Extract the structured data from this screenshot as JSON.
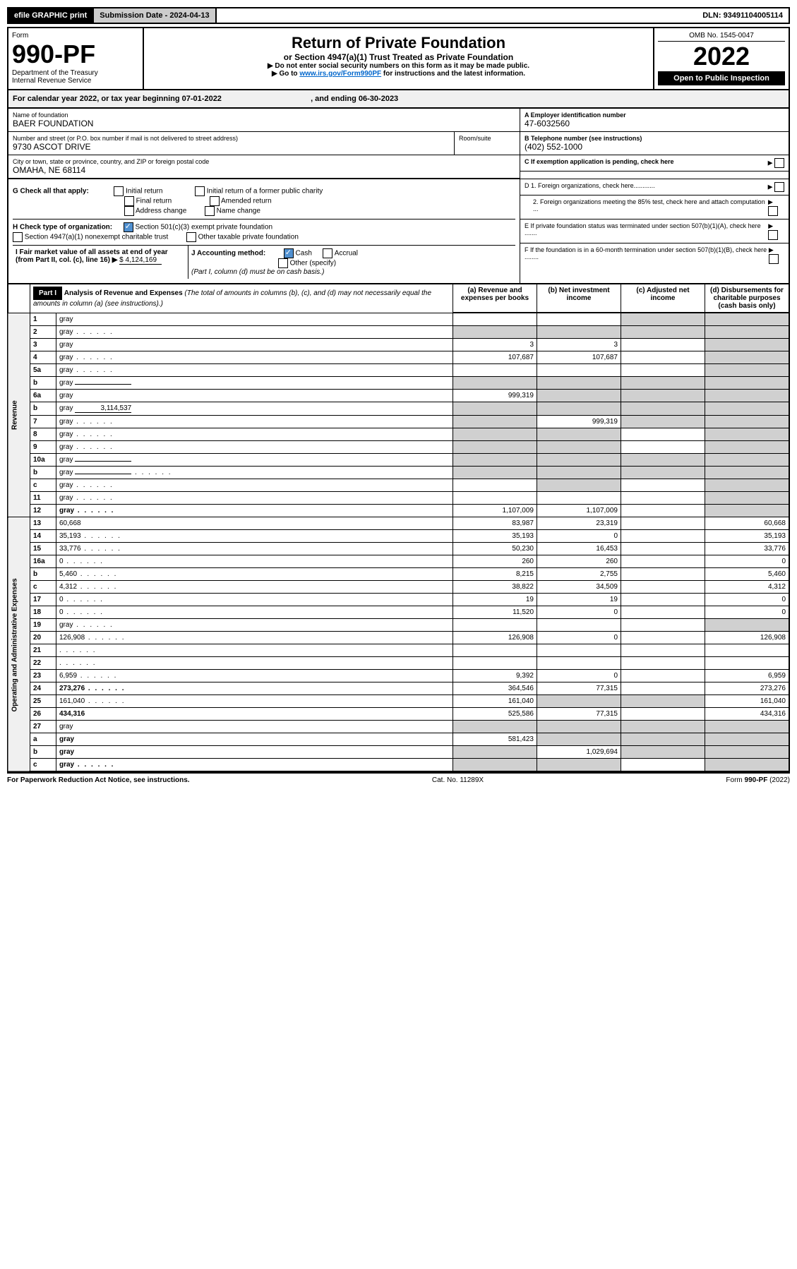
{
  "topbar": {
    "btn1": "efile GRAPHIC print",
    "btn2_label": "Submission Date - ",
    "btn2_value": "2024-04-13",
    "dln_label": "DLN: ",
    "dln_value": "93491104005114"
  },
  "header": {
    "form_label": "Form",
    "form_num": "990-PF",
    "dept": "Department of the Treasury",
    "irs": "Internal Revenue Service",
    "title": "Return of Private Foundation",
    "subtitle": "or Section 4947(a)(1) Trust Treated as Private Foundation",
    "note1": "▶ Do not enter social security numbers on this form as it may be made public.",
    "note2_pre": "▶ Go to ",
    "note2_link": "www.irs.gov/Form990PF",
    "note2_post": " for instructions and the latest information.",
    "omb": "OMB No. 1545-0047",
    "year": "2022",
    "open": "Open to Public Inspection"
  },
  "calyear": {
    "text_pre": "For calendar year 2022, or tax year beginning ",
    "begin": "07-01-2022",
    "text_mid": " , and ending ",
    "end": "06-30-2023"
  },
  "info": {
    "name_label": "Name of foundation",
    "name": "BAER FOUNDATION",
    "addr_label": "Number and street (or P.O. box number if mail is not delivered to street address)",
    "room_label": "Room/suite",
    "addr": "9730 ASCOT DRIVE",
    "city_label": "City or town, state or province, country, and ZIP or foreign postal code",
    "city": "OMAHA, NE  68114",
    "ein_label": "A Employer identification number",
    "ein": "47-6032560",
    "phone_label": "B Telephone number (see instructions)",
    "phone": "(402) 552-1000",
    "c_label": "C If exemption application is pending, check here",
    "d1_label": "D 1. Foreign organizations, check here............",
    "d2_label": "2. Foreign organizations meeting the 85% test, check here and attach computation ...",
    "e_label": "E  If private foundation status was terminated under section 507(b)(1)(A), check here .......",
    "f_label": "F  If the foundation is in a 60-month termination under section 507(b)(1)(B), check here ........"
  },
  "g": {
    "label": "G Check all that apply:",
    "opts": [
      "Initial return",
      "Final return",
      "Address change",
      "Initial return of a former public charity",
      "Amended return",
      "Name change"
    ]
  },
  "h": {
    "label": "H Check type of organization:",
    "opt1": "Section 501(c)(3) exempt private foundation",
    "opt2": "Section 4947(a)(1) nonexempt charitable trust",
    "opt3": "Other taxable private foundation"
  },
  "i": {
    "label_pre": "I Fair market value of all assets at end of year (from Part II, col. (c), line 16) ▶",
    "value": "$  4,124,169"
  },
  "j": {
    "label": "J Accounting method:",
    "cash": "Cash",
    "accrual": "Accrual",
    "other": "Other (specify)",
    "note": "(Part I, column (d) must be on cash basis.)"
  },
  "part1": {
    "label": "Part I",
    "title": "Analysis of Revenue and Expenses",
    "note": "(The total of amounts in columns (b), (c), and (d) may not necessarily equal the amounts in column (a) (see instructions).)",
    "col_a": "(a)  Revenue and expenses per books",
    "col_b": "(b)  Net investment income",
    "col_c": "(c)  Adjusted net income",
    "col_d": "(d)  Disbursements for charitable purposes (cash basis only)"
  },
  "sections": {
    "revenue": "Revenue",
    "expenses": "Operating and Administrative Expenses"
  },
  "lines": [
    {
      "n": "1",
      "d": "gray",
      "a": "",
      "b": "",
      "c": "gray"
    },
    {
      "n": "2",
      "d": "gray",
      "a": "gray",
      "b": "gray",
      "c": "gray",
      "dots": true
    },
    {
      "n": "3",
      "d": "gray",
      "a": "3",
      "b": "3",
      "c": ""
    },
    {
      "n": "4",
      "d": "gray",
      "a": "107,687",
      "b": "107,687",
      "c": "",
      "dots": true
    },
    {
      "n": "5a",
      "d": "gray",
      "a": "",
      "b": "",
      "c": "",
      "dots": true
    },
    {
      "n": "b",
      "d": "gray",
      "a": "gray",
      "b": "gray",
      "c": "gray",
      "inline": true
    },
    {
      "n": "6a",
      "d": "gray",
      "a": "999,319",
      "b": "gray",
      "c": "gray"
    },
    {
      "n": "b",
      "d": "gray",
      "inline_val": "3,114,537",
      "a": "gray",
      "b": "gray",
      "c": "gray"
    },
    {
      "n": "7",
      "d": "gray",
      "a": "gray",
      "b": "999,319",
      "c": "gray",
      "dots": true
    },
    {
      "n": "8",
      "d": "gray",
      "a": "gray",
      "b": "gray",
      "c": "",
      "dots": true
    },
    {
      "n": "9",
      "d": "gray",
      "a": "gray",
      "b": "gray",
      "c": "",
      "dots": true
    },
    {
      "n": "10a",
      "d": "gray",
      "a": "gray",
      "b": "gray",
      "c": "gray",
      "inline": true
    },
    {
      "n": "b",
      "d": "gray",
      "a": "gray",
      "b": "gray",
      "c": "gray",
      "inline": true,
      "dots": true
    },
    {
      "n": "c",
      "d": "gray",
      "a": "",
      "b": "gray",
      "c": "",
      "dots": true
    },
    {
      "n": "11",
      "d": "gray",
      "a": "",
      "b": "",
      "c": "",
      "dots": true
    },
    {
      "n": "12",
      "d": "gray",
      "a": "1,107,009",
      "b": "1,107,009",
      "c": "",
      "bold": true,
      "dots": true
    }
  ],
  "exp_lines": [
    {
      "n": "13",
      "d": "60,668",
      "a": "83,987",
      "b": "23,319",
      "c": ""
    },
    {
      "n": "14",
      "d": "35,193",
      "a": "35,193",
      "b": "0",
      "c": "",
      "dots": true
    },
    {
      "n": "15",
      "d": "33,776",
      "a": "50,230",
      "b": "16,453",
      "c": "",
      "dots": true
    },
    {
      "n": "16a",
      "d": "0",
      "a": "260",
      "b": "260",
      "c": "",
      "dots": true
    },
    {
      "n": "b",
      "d": "5,460",
      "a": "8,215",
      "b": "2,755",
      "c": "",
      "dots": true
    },
    {
      "n": "c",
      "d": "4,312",
      "a": "38,822",
      "b": "34,509",
      "c": "",
      "dots": true
    },
    {
      "n": "17",
      "d": "0",
      "a": "19",
      "b": "19",
      "c": "",
      "dots": true
    },
    {
      "n": "18",
      "d": "0",
      "a": "11,520",
      "b": "0",
      "c": "",
      "dots": true
    },
    {
      "n": "19",
      "d": "gray",
      "a": "",
      "b": "",
      "c": "",
      "dots": true
    },
    {
      "n": "20",
      "d": "126,908",
      "a": "126,908",
      "b": "0",
      "c": "",
      "dots": true
    },
    {
      "n": "21",
      "d": "",
      "a": "",
      "b": "",
      "c": "",
      "dots": true
    },
    {
      "n": "22",
      "d": "",
      "a": "",
      "b": "",
      "c": "",
      "dots": true
    },
    {
      "n": "23",
      "d": "6,959",
      "a": "9,392",
      "b": "0",
      "c": "",
      "dots": true
    },
    {
      "n": "24",
      "d": "273,276",
      "a": "364,546",
      "b": "77,315",
      "c": "",
      "bold": true,
      "dots": true
    },
    {
      "n": "25",
      "d": "161,040",
      "a": "161,040",
      "b": "gray",
      "c": "gray",
      "dots": true
    },
    {
      "n": "26",
      "d": "434,316",
      "a": "525,586",
      "b": "77,315",
      "c": "",
      "bold": true
    },
    {
      "n": "27",
      "d": "gray",
      "a": "gray",
      "b": "gray",
      "c": "gray"
    },
    {
      "n": "a",
      "d": "gray",
      "a": "581,423",
      "b": "gray",
      "c": "gray",
      "bold": true
    },
    {
      "n": "b",
      "d": "gray",
      "a": "gray",
      "b": "1,029,694",
      "c": "gray",
      "bold": true
    },
    {
      "n": "c",
      "d": "gray",
      "a": "gray",
      "b": "gray",
      "c": "",
      "bold": true,
      "dots": true
    }
  ],
  "footer": {
    "left": "For Paperwork Reduction Act Notice, see instructions.",
    "center": "Cat. No. 11289X",
    "right": "Form 990-PF (2022)"
  }
}
